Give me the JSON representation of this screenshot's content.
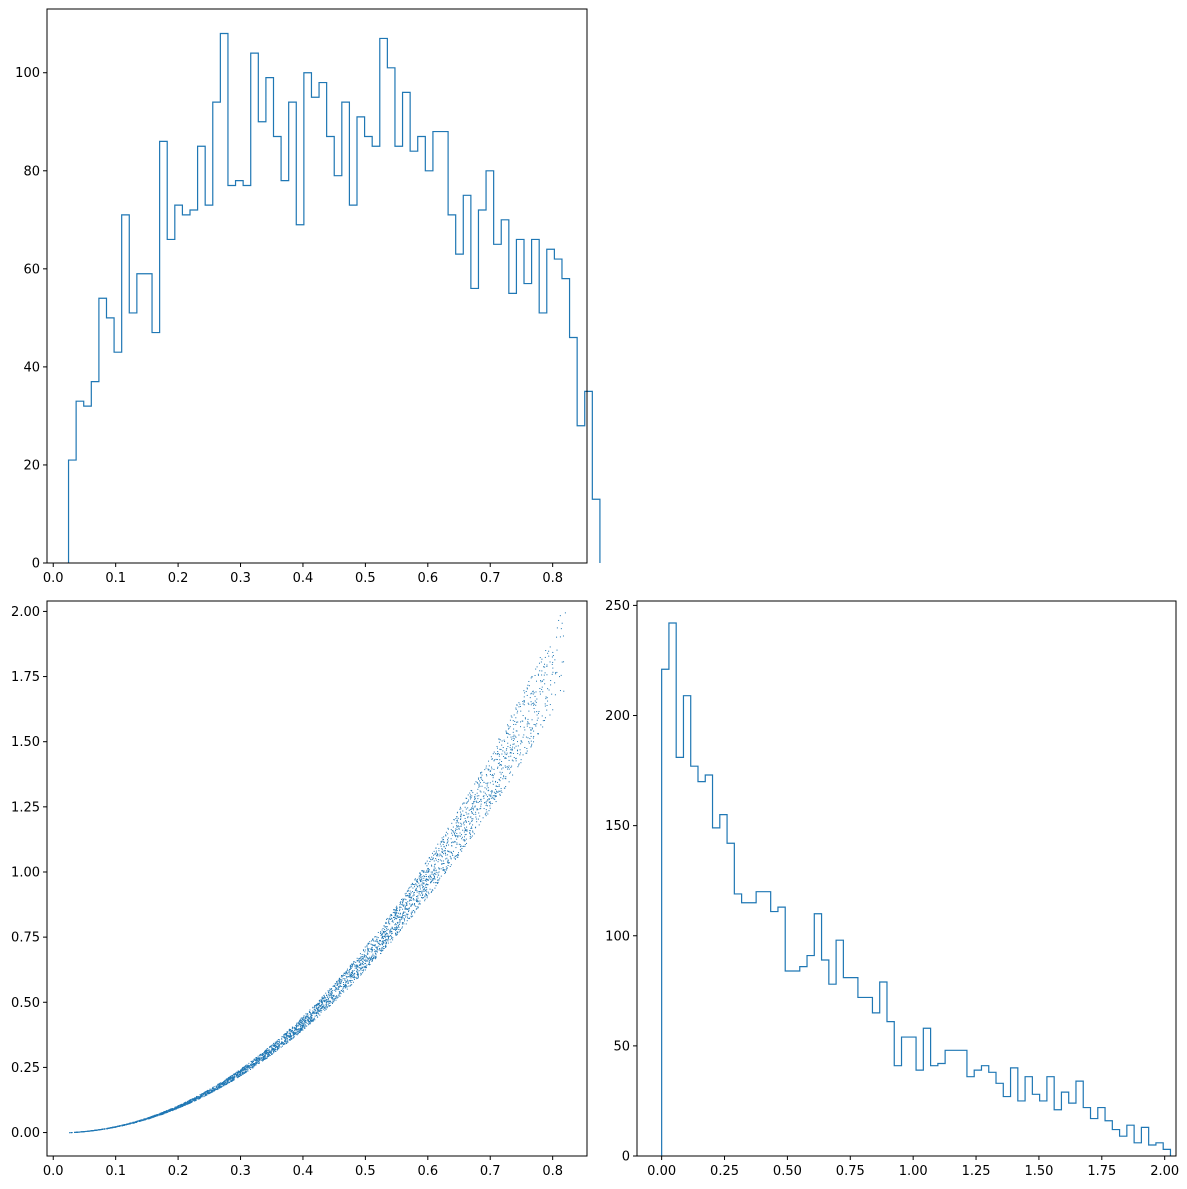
{
  "chart_data": [
    {
      "type": "histogram",
      "histtype": "step",
      "xlim": [
        -0.01,
        0.855
      ],
      "ylim": [
        0,
        113
      ],
      "xticks": [
        "0.0",
        "0.1",
        "0.2",
        "0.3",
        "0.4",
        "0.5",
        "0.6",
        "0.7",
        "0.8"
      ],
      "yticks": [
        "0",
        "20",
        "40",
        "60",
        "80",
        "100"
      ],
      "bin_start": 0.0245,
      "bin_width": 0.01216,
      "counts": [
        21,
        33,
        32,
        37,
        54,
        50,
        43,
        71,
        51,
        59,
        59,
        47,
        86,
        66,
        73,
        71,
        72,
        85,
        73,
        94,
        108,
        77,
        78,
        77,
        104,
        90,
        99,
        87,
        78,
        94,
        69,
        100,
        95,
        98,
        87,
        79,
        94,
        73,
        91,
        87,
        85,
        107,
        101,
        85,
        96,
        84,
        87,
        80,
        88,
        88,
        71,
        63,
        75,
        56,
        72,
        80,
        65,
        70,
        55,
        66,
        57,
        66,
        51,
        64,
        62,
        58,
        46,
        28,
        35,
        13
      ]
    },
    {
      "type": "scatter",
      "xlim": [
        -0.01,
        0.855
      ],
      "ylim": [
        -0.09,
        2.04
      ],
      "xticks": [
        "0.0",
        "0.1",
        "0.2",
        "0.3",
        "0.4",
        "0.5",
        "0.6",
        "0.7",
        "0.8"
      ],
      "yticks": [
        "0.00",
        "0.25",
        "0.50",
        "0.75",
        "1.00",
        "1.25",
        "1.50",
        "1.75",
        "2.00"
      ],
      "trend": "y ≈ 2.8·x^2.05 with narrow spread, x from 0.025 to 0.82",
      "sample_points": [
        [
          0.03,
          0.002
        ],
        [
          0.05,
          0.006
        ],
        [
          0.08,
          0.015
        ],
        [
          0.1,
          0.025
        ],
        [
          0.13,
          0.043
        ],
        [
          0.15,
          0.058
        ],
        [
          0.18,
          0.083
        ],
        [
          0.2,
          0.1
        ],
        [
          0.23,
          0.135
        ],
        [
          0.25,
          0.16
        ],
        [
          0.28,
          0.2
        ],
        [
          0.3,
          0.23
        ],
        [
          0.33,
          0.28
        ],
        [
          0.35,
          0.32
        ],
        [
          0.38,
          0.37
        ],
        [
          0.4,
          0.42
        ],
        [
          0.43,
          0.48
        ],
        [
          0.45,
          0.53
        ],
        [
          0.48,
          0.6
        ],
        [
          0.5,
          0.65
        ],
        [
          0.53,
          0.73
        ],
        [
          0.55,
          0.8
        ],
        [
          0.58,
          0.88
        ],
        [
          0.6,
          0.95
        ],
        [
          0.63,
          1.05
        ],
        [
          0.65,
          1.13
        ],
        [
          0.68,
          1.24
        ],
        [
          0.7,
          1.32
        ],
        [
          0.73,
          1.45
        ],
        [
          0.75,
          1.55
        ],
        [
          0.78,
          1.7
        ],
        [
          0.8,
          1.82
        ],
        [
          0.82,
          1.95
        ]
      ]
    },
    {
      "type": "histogram",
      "histtype": "step",
      "xlim": [
        -0.098,
        2.045
      ],
      "ylim": [
        0,
        252
      ],
      "xticks": [
        "0.00",
        "0.25",
        "0.50",
        "0.75",
        "1.00",
        "1.25",
        "1.50",
        "1.75",
        "2.00"
      ],
      "yticks": [
        "0",
        "50",
        "100",
        "150",
        "200",
        "250"
      ],
      "bin_start": 0.0,
      "bin_width": 0.0289,
      "counts": [
        221,
        242,
        181,
        209,
        177,
        170,
        173,
        149,
        155,
        142,
        119,
        115,
        115,
        120,
        120,
        111,
        113,
        84,
        84,
        86,
        91,
        110,
        89,
        78,
        98,
        81,
        81,
        72,
        72,
        65,
        79,
        61,
        41,
        54,
        54,
        39,
        58,
        41,
        42,
        48,
        48,
        48,
        36,
        39,
        41,
        38,
        33,
        27,
        40,
        25,
        36,
        28,
        25,
        36,
        21,
        29,
        24,
        34,
        22,
        17,
        22,
        16,
        12,
        9,
        14,
        6,
        13,
        5,
        6,
        3
      ]
    }
  ]
}
